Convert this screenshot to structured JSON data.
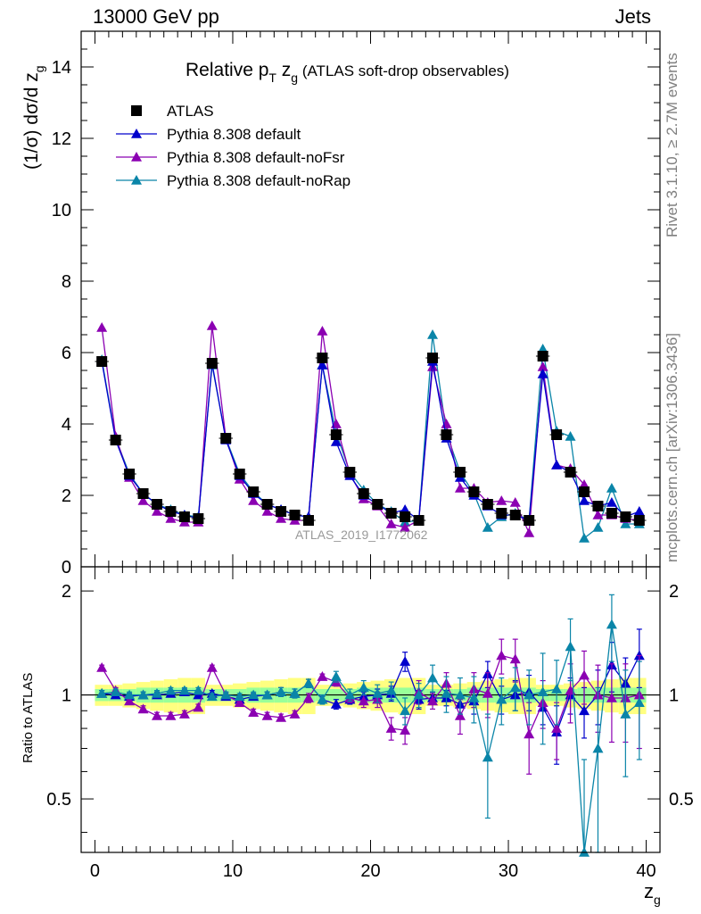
{
  "header": {
    "left": "13000 GeV pp",
    "right": "Jets"
  },
  "side_labels": {
    "top": "Rivet 3.1.10, ≥ 2.7M events",
    "bottom": "mcplots.cern.ch [arXiv:1306.3436]"
  },
  "watermark": "ATLAS_2019_I1772062",
  "colors": {
    "data": "#000000",
    "default": "#0000cc",
    "noFsr": "#8b00b2",
    "noRap": "#0a85a8",
    "band_inner": "#99ff99",
    "band_outer": "#ffff80"
  },
  "chart_data": [
    {
      "type": "scatter",
      "title": "Relative p_T z_g (ATLAS soft-drop observables)",
      "title_parts": {
        "main": "Relative p",
        "sub": "T",
        "mid": " z",
        "sub2": "g",
        "rest": " (ATLAS soft-drop observables)"
      },
      "ylabel": "(1/σ) dσ/d z_g",
      "ylabel_parts": {
        "main": "(1/σ) dσ/d z",
        "sub": "g"
      },
      "ylim": [
        0,
        15
      ],
      "yticks": [
        0,
        2,
        4,
        6,
        8,
        10,
        12,
        14
      ],
      "legend_position": "top-left",
      "x": [
        0.5,
        1.5,
        2.5,
        3.5,
        4.5,
        5.5,
        6.5,
        7.5,
        8.5,
        9.5,
        10.5,
        11.5,
        12.5,
        13.5,
        14.5,
        15.5,
        16.5,
        17.5,
        18.5,
        19.5,
        20.5,
        21.5,
        22.5,
        23.5,
        24.5,
        25.5,
        26.5,
        27.5,
        28.5,
        29.5,
        30.5,
        31.5,
        32.5,
        33.5,
        34.5,
        35.5,
        36.5,
        37.5,
        38.5,
        39.5
      ],
      "series": [
        {
          "name": "ATLAS",
          "marker": "square",
          "values": [
            5.75,
            3.55,
            2.6,
            2.05,
            1.75,
            1.55,
            1.4,
            1.35,
            5.7,
            3.6,
            2.6,
            2.1,
            1.75,
            1.55,
            1.45,
            1.3,
            5.85,
            3.7,
            2.65,
            2.05,
            1.75,
            1.5,
            1.4,
            1.3,
            5.85,
            3.7,
            2.65,
            2.1,
            1.75,
            1.5,
            1.45,
            1.3,
            5.9,
            3.7,
            2.65,
            2.1,
            1.7,
            1.5,
            1.4,
            1.3
          ]
        },
        {
          "name": "Pythia 8.308 default",
          "marker": "triangle",
          "values": [
            5.75,
            3.55,
            2.55,
            2.05,
            1.75,
            1.55,
            1.45,
            1.35,
            5.7,
            3.55,
            2.55,
            2.05,
            1.75,
            1.6,
            1.45,
            1.4,
            5.65,
            3.5,
            2.55,
            2.0,
            1.75,
            1.5,
            1.6,
            1.3,
            5.75,
            3.6,
            2.5,
            2.0,
            1.7,
            1.45,
            1.45,
            1.3,
            5.4,
            2.85,
            2.65,
            1.85,
            1.7,
            1.8,
            1.4,
            1.55
          ]
        },
        {
          "name": "Pythia 8.308 default-noFsr",
          "marker": "triangle",
          "values": [
            6.7,
            3.65,
            2.5,
            1.85,
            1.55,
            1.35,
            1.25,
            1.25,
            6.75,
            3.6,
            2.45,
            1.85,
            1.55,
            1.35,
            1.3,
            1.3,
            6.6,
            4.0,
            2.6,
            1.9,
            1.7,
            1.2,
            1.1,
            1.3,
            5.6,
            4.0,
            2.2,
            2.2,
            1.8,
            1.85,
            1.8,
            0.95,
            5.6,
            2.85,
            2.75,
            2.3,
            1.45,
            1.45,
            1.35,
            1.3
          ]
        },
        {
          "name": "Pythia 8.308 default-noRap",
          "marker": "triangle",
          "values": [
            5.8,
            3.6,
            2.6,
            2.05,
            1.75,
            1.6,
            1.45,
            1.4,
            5.65,
            3.6,
            2.6,
            2.1,
            1.75,
            1.6,
            1.45,
            1.4,
            5.65,
            3.75,
            2.65,
            2.15,
            1.75,
            1.55,
            1.25,
            1.3,
            6.5,
            3.75,
            2.65,
            2.05,
            1.1,
            1.4,
            1.5,
            1.3,
            6.1,
            3.8,
            3.65,
            0.8,
            1.1,
            2.2,
            1.2,
            1.2
          ]
        }
      ],
      "watermark": "ATLAS_2019_I1772062"
    },
    {
      "type": "scatter",
      "ylabel": "Ratio to ATLAS",
      "xlabel": "z_g",
      "xlabel_parts": {
        "main": "z",
        "sub": "g"
      },
      "xlim": [
        -1,
        41
      ],
      "xticks": [
        0,
        10,
        20,
        30,
        40
      ],
      "ylim": [
        0.35,
        2.35
      ],
      "yticks": [
        0.5,
        1,
        2
      ],
      "ytick_labels": [
        "0.5",
        "1",
        "2"
      ],
      "x": [
        0.5,
        1.5,
        2.5,
        3.5,
        4.5,
        5.5,
        6.5,
        7.5,
        8.5,
        9.5,
        10.5,
        11.5,
        12.5,
        13.5,
        14.5,
        15.5,
        16.5,
        17.5,
        18.5,
        19.5,
        20.5,
        21.5,
        22.5,
        23.5,
        24.5,
        25.5,
        26.5,
        27.5,
        28.5,
        29.5,
        30.5,
        31.5,
        32.5,
        33.5,
        34.5,
        35.5,
        36.5,
        37.5,
        38.5,
        39.5
      ],
      "band_inner": [
        0.04,
        0.04,
        0.04,
        0.05,
        0.05,
        0.05,
        0.05,
        0.05,
        0.04,
        0.04,
        0.04,
        0.05,
        0.05,
        0.05,
        0.05,
        0.05,
        0.04,
        0.04,
        0.04,
        0.05,
        0.05,
        0.05,
        0.05,
        0.05,
        0.04,
        0.04,
        0.04,
        0.05,
        0.05,
        0.05,
        0.05,
        0.05,
        0.04,
        0.04,
        0.04,
        0.05,
        0.05,
        0.05,
        0.05,
        0.05
      ],
      "band_outer": [
        0.07,
        0.07,
        0.08,
        0.09,
        0.1,
        0.11,
        0.12,
        0.12,
        0.07,
        0.07,
        0.08,
        0.09,
        0.1,
        0.11,
        0.12,
        0.12,
        0.07,
        0.07,
        0.08,
        0.09,
        0.1,
        0.11,
        0.12,
        0.12,
        0.07,
        0.07,
        0.08,
        0.09,
        0.1,
        0.11,
        0.12,
        0.12,
        0.07,
        0.07,
        0.08,
        0.09,
        0.1,
        0.11,
        0.12,
        0.12
      ],
      "series": [
        {
          "name": "Pythia 8.308 default",
          "values": [
            1.01,
            1.0,
            0.99,
            1.0,
            1.0,
            1.01,
            1.02,
            1.0,
            1.01,
            0.99,
            0.97,
            0.99,
            1.0,
            1.02,
            1.01,
            1.08,
            0.97,
            0.94,
            0.97,
            0.99,
            1.0,
            1.01,
            1.25,
            0.97,
            0.98,
            0.98,
            0.94,
            0.96,
            1.15,
            0.97,
            1.0,
            1.02,
            0.92,
            0.78,
            1.0,
            0.9,
            1.0,
            1.22,
            1.08,
            1.3
          ],
          "errors": [
            0.02,
            0.02,
            0.02,
            0.02,
            0.02,
            0.02,
            0.02,
            0.02,
            0.02,
            0.02,
            0.02,
            0.02,
            0.02,
            0.03,
            0.03,
            0.03,
            0.02,
            0.03,
            0.03,
            0.03,
            0.04,
            0.05,
            0.08,
            0.06,
            0.04,
            0.05,
            0.06,
            0.08,
            0.1,
            0.09,
            0.1,
            0.12,
            0.1,
            0.15,
            0.12,
            0.15,
            0.18,
            0.2,
            0.2,
            0.25
          ]
        },
        {
          "name": "Pythia 8.308 default-noFsr",
          "values": [
            1.2,
            1.03,
            0.96,
            0.91,
            0.87,
            0.87,
            0.88,
            0.92,
            1.2,
            1.0,
            0.95,
            0.89,
            0.87,
            0.86,
            0.88,
            0.98,
            1.13,
            1.09,
            0.98,
            0.96,
            0.97,
            0.8,
            0.79,
            1.02,
            0.96,
            1.08,
            0.87,
            1.04,
            1.01,
            1.3,
            1.27,
            0.77,
            0.95,
            0.8,
            1.03,
            1.14,
            1.0,
            0.98,
            0.98,
            1.0
          ],
          "errors": [
            0.02,
            0.02,
            0.02,
            0.02,
            0.02,
            0.02,
            0.02,
            0.02,
            0.02,
            0.02,
            0.02,
            0.02,
            0.02,
            0.02,
            0.02,
            0.03,
            0.02,
            0.03,
            0.03,
            0.04,
            0.05,
            0.06,
            0.07,
            0.08,
            0.05,
            0.08,
            0.1,
            0.12,
            0.15,
            0.15,
            0.18,
            0.18,
            0.15,
            0.15,
            0.2,
            0.2,
            0.22,
            0.25,
            0.25,
            0.3
          ]
        },
        {
          "name": "Pythia 8.308 default-noRap",
          "values": [
            1.01,
            1.02,
            1.0,
            1.0,
            1.01,
            1.03,
            1.03,
            1.03,
            0.99,
            1.0,
            0.99,
            1.0,
            1.0,
            1.02,
            1.01,
            1.08,
            0.97,
            1.13,
            1.0,
            1.05,
            1.01,
            1.03,
            0.9,
            1.0,
            1.12,
            1.01,
            1.0,
            0.98,
            0.66,
            0.97,
            1.05,
            1.0,
            1.02,
            1.04,
            1.38,
            0.35,
            0.7,
            1.6,
            0.88,
            0.95
          ],
          "errors": [
            0.02,
            0.02,
            0.02,
            0.02,
            0.02,
            0.02,
            0.02,
            0.02,
            0.02,
            0.02,
            0.02,
            0.02,
            0.02,
            0.03,
            0.03,
            0.03,
            0.03,
            0.04,
            0.04,
            0.05,
            0.06,
            0.06,
            0.08,
            0.08,
            0.1,
            0.12,
            0.12,
            0.15,
            0.22,
            0.15,
            0.15,
            0.18,
            0.3,
            0.22,
            0.28,
            0.3,
            0.35,
            0.35,
            0.3,
            0.3
          ]
        }
      ]
    }
  ]
}
